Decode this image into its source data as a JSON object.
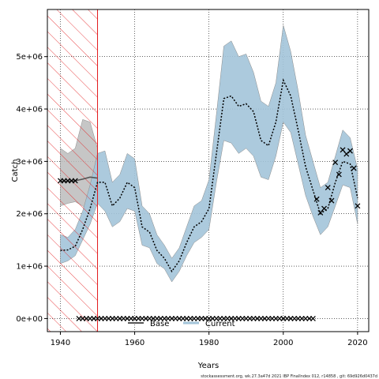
{
  "chart_data": {
    "type": "line",
    "title": "",
    "xlabel": "Years",
    "ylabel": "Catch",
    "xlim": [
      1936.5,
      2023
    ],
    "ylim": [
      -250000,
      5900000
    ],
    "xticks": [
      1940,
      1960,
      1980,
      2000,
      2020
    ],
    "xtick_labels": [
      "1940",
      "1960",
      "1980",
      "2000",
      "2020"
    ],
    "yticks": [
      0,
      1000000,
      2000000,
      3000000,
      4000000,
      5000000
    ],
    "ytick_labels": [
      "0e+00",
      "1e+06",
      "2e+06",
      "3e+06",
      "4e+06",
      "5e+06"
    ],
    "grid": true,
    "legend_placement": "bottom-center",
    "hatched_region": {
      "x_start": 1936.5,
      "x_end": 1950,
      "color": "#e31a1c"
    },
    "series": [
      {
        "name": "Base",
        "color": "#555555",
        "band_color": "#bcbcbc",
        "x": [
          1940,
          1942,
          1944,
          1946,
          1948,
          1950
        ],
        "mean": [
          2620000,
          2620000,
          2630000,
          2660000,
          2700000,
          2680000
        ],
        "lower": [
          2150000,
          2200000,
          2230000,
          2150000,
          2000000,
          2300000
        ],
        "upper": [
          3250000,
          3150000,
          3250000,
          3800000,
          3750000,
          3250000
        ]
      },
      {
        "name": "Current",
        "color": "#000000",
        "band_color": "#a3c4d9",
        "x": [
          1940,
          1942,
          1944,
          1946,
          1948,
          1950,
          1952,
          1954,
          1956,
          1958,
          1960,
          1962,
          1964,
          1966,
          1968,
          1970,
          1972,
          1974,
          1976,
          1978,
          1980,
          1982,
          1984,
          1986,
          1988,
          1990,
          1992,
          1994,
          1996,
          1998,
          2000,
          2002,
          2004,
          2006,
          2008,
          2010,
          2012,
          2014,
          2016,
          2018,
          2020
        ],
        "mean": [
          1300000,
          1310000,
          1380000,
          1700000,
          2100000,
          2600000,
          2600000,
          2150000,
          2300000,
          2600000,
          2500000,
          1750000,
          1650000,
          1300000,
          1150000,
          900000,
          1100000,
          1450000,
          1750000,
          1850000,
          2100000,
          3150000,
          4200000,
          4250000,
          4050000,
          4100000,
          3950000,
          3400000,
          3300000,
          3750000,
          4550000,
          4250000,
          3600000,
          2900000,
          2450000,
          2000000,
          2100000,
          2600000,
          3000000,
          2950000,
          2300000
        ],
        "lower": [
          1050000,
          1100000,
          1200000,
          1500000,
          1800000,
          2200000,
          2050000,
          1750000,
          1850000,
          2100000,
          2050000,
          1400000,
          1350000,
          1050000,
          950000,
          700000,
          900000,
          1200000,
          1450000,
          1550000,
          1700000,
          2600000,
          3400000,
          3350000,
          3150000,
          3250000,
          3100000,
          2700000,
          2650000,
          3100000,
          3750000,
          3550000,
          2950000,
          2350000,
          1950000,
          1600000,
          1750000,
          2150000,
          2550000,
          2500000,
          1800000
        ],
        "upper": [
          1600000,
          1550000,
          1700000,
          2050000,
          2550000,
          3150000,
          3200000,
          2600000,
          2750000,
          3150000,
          3050000,
          2150000,
          2000000,
          1600000,
          1400000,
          1150000,
          1350000,
          1750000,
          2150000,
          2250000,
          2650000,
          3900000,
          5200000,
          5300000,
          5000000,
          5050000,
          4700000,
          4150000,
          4050000,
          4500000,
          5600000,
          5100000,
          4350000,
          3500000,
          3000000,
          2500000,
          2600000,
          3100000,
          3600000,
          3450000,
          2850000
        ]
      }
    ],
    "observed_catch": {
      "marker": "x",
      "x": [
        1940,
        1941,
        1942,
        1943,
        1944,
        2009,
        2010,
        2011,
        2012,
        2013,
        2014,
        2015,
        2016,
        2017,
        2018,
        2019,
        2020
      ],
      "y": [
        2630000,
        2630000,
        2630000,
        2630000,
        2630000,
        2280000,
        2020000,
        2100000,
        2500000,
        2250000,
        2980000,
        2750000,
        3220000,
        3140000,
        3200000,
        2870000,
        2150000
      ]
    },
    "zero_line_markers": {
      "marker": "x",
      "x_start": 1945,
      "x_end": 2008,
      "y": 0
    }
  },
  "footer": "stockassessment.org, wk.27.3a47d 2021 IBP FinalIndex 012, r14858 , git: 69d926d0437d"
}
